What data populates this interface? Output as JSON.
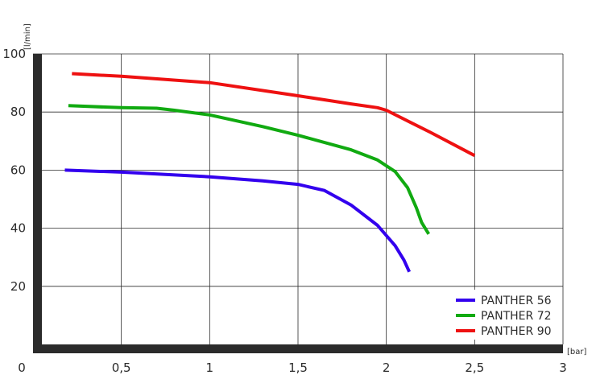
{
  "chart_data": {
    "type": "line",
    "title": "",
    "xlabel": "[bar]",
    "ylabel": "[l/min]",
    "xlim": [
      0,
      3
    ],
    "ylim": [
      0,
      100
    ],
    "x_ticks": [
      0,
      0.5,
      1,
      1.5,
      2,
      2.5,
      3
    ],
    "x_tick_labels": [
      "0",
      "0,5",
      "1",
      "1,5",
      "2",
      "2,5",
      "3"
    ],
    "y_ticks": [
      20,
      40,
      60,
      80,
      100
    ],
    "y_tick_labels": [
      "20",
      "40",
      "60",
      "80",
      "100"
    ],
    "grid": true,
    "legend_position": "bottom-right",
    "series": [
      {
        "name": "PANTHER 56",
        "color": "#3300ee",
        "x": [
          0.18,
          0.5,
          1.0,
          1.3,
          1.5,
          1.65,
          1.8,
          1.95,
          2.05,
          2.1,
          2.13
        ],
        "y": [
          60,
          59.3,
          57.7,
          56.3,
          55.1,
          53.0,
          48.0,
          41.0,
          34.0,
          29.0,
          25.0
        ]
      },
      {
        "name": "PANTHER 72",
        "color": "#11aa11",
        "x": [
          0.2,
          0.5,
          0.7,
          0.8,
          1.0,
          1.3,
          1.5,
          1.8,
          1.95,
          2.05,
          2.12,
          2.17,
          2.2,
          2.24
        ],
        "y": [
          82.2,
          81.5,
          81.3,
          80.6,
          79.0,
          75.0,
          72.0,
          67.0,
          63.5,
          59.5,
          54.0,
          47.0,
          42.0,
          38.0
        ]
      },
      {
        "name": "PANTHER 90",
        "color": "#ee1111",
        "x": [
          0.22,
          0.5,
          1.0,
          1.5,
          1.8,
          1.95,
          2.0,
          2.25,
          2.5
        ],
        "y": [
          93.2,
          92.3,
          90.1,
          85.6,
          82.8,
          81.5,
          80.6,
          73.0,
          65.0
        ]
      }
    ]
  }
}
